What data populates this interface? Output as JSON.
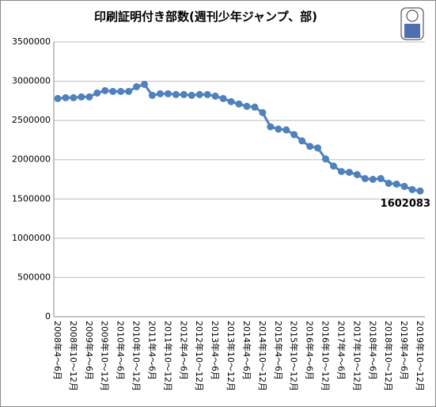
{
  "chart_data": {
    "type": "line",
    "title": "印刷証明付き部数(週刊少年ジャンプ、部)",
    "categories": [
      "2008年4～6月",
      null,
      "2008年10～12月",
      null,
      "2009年4～6月",
      null,
      "2009年10～12月",
      null,
      "2010年4～6月",
      null,
      "2010年10～12月",
      null,
      "2011年4～6月",
      null,
      "2011年10～12月",
      null,
      "2012年4～6月",
      null,
      "2012年10～12月",
      null,
      "2013年4～6月",
      null,
      "2013年10～12月",
      null,
      "2014年4～6月",
      null,
      "2014年10～12月",
      null,
      "2015年4～6月",
      null,
      "2015年10～12月",
      null,
      "2016年4～6月",
      null,
      "2016年10～12月",
      null,
      "2017年4～6月",
      null,
      "2017年10～12月",
      null,
      "2018年4～6月",
      null,
      "2018年10～12月",
      null,
      "2019年4～6月",
      null,
      "2019年10～12月"
    ],
    "series": [
      {
        "name": "印刷証明付き部数",
        "color": "#4f81bd",
        "values": [
          2780000,
          2790000,
          2790000,
          2800000,
          2800000,
          2850000,
          2880000,
          2870000,
          2870000,
          2870000,
          2930000,
          2960000,
          2820000,
          2840000,
          2840000,
          2830000,
          2830000,
          2820000,
          2830000,
          2830000,
          2810000,
          2780000,
          2740000,
          2710000,
          2680000,
          2670000,
          2600000,
          2420000,
          2390000,
          2380000,
          2320000,
          2240000,
          2170000,
          2150000,
          2010000,
          1920000,
          1850000,
          1840000,
          1810000,
          1760000,
          1750000,
          1760000,
          1700000,
          1690000,
          1660000,
          1620000,
          1602083
        ]
      }
    ],
    "ylim": [
      0,
      3500000
    ],
    "yticks": [
      0,
      500000,
      1000000,
      1500000,
      2000000,
      2500000,
      3000000,
      3500000
    ],
    "grid": true
  }
}
